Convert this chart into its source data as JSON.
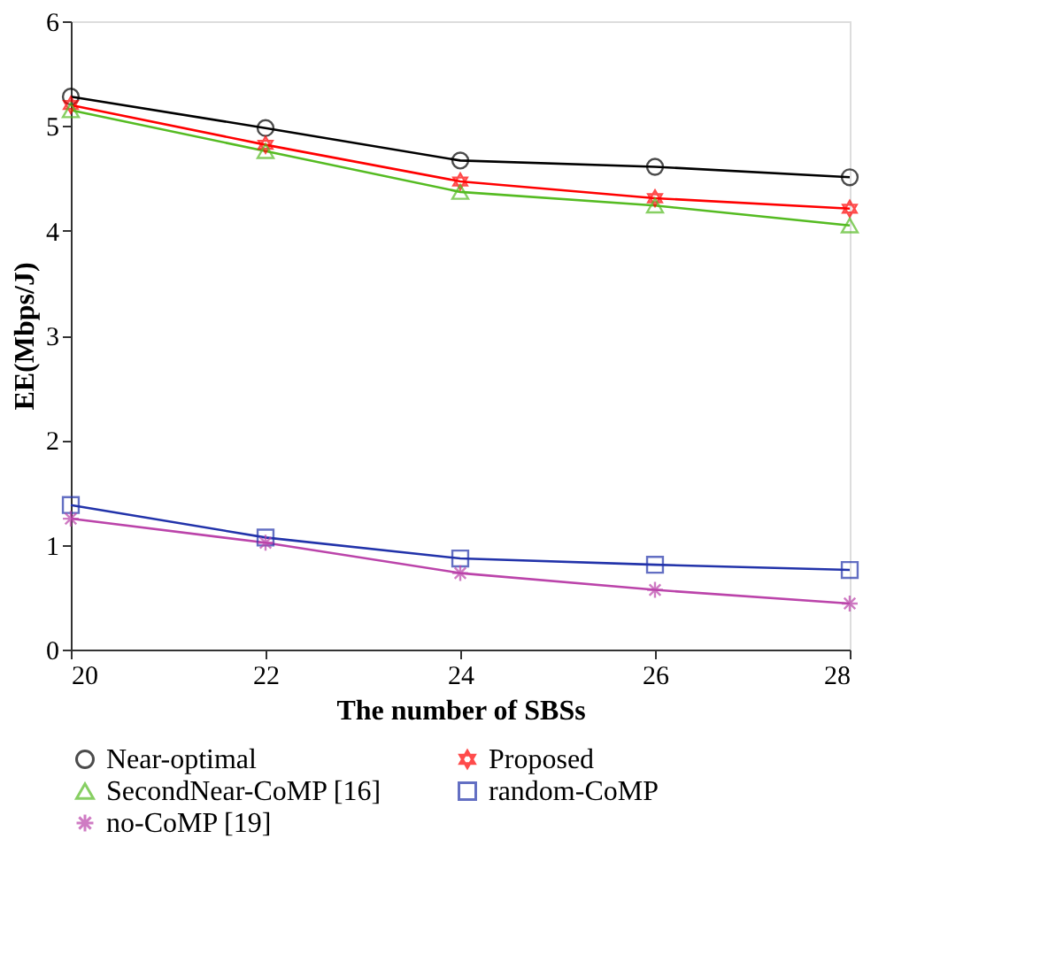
{
  "chart_data": {
    "type": "line",
    "xlabel": "The number of SBSs",
    "ylabel": "EE(Mbps/J)",
    "x": [
      20,
      22,
      24,
      26,
      28
    ],
    "xlim": [
      20,
      28
    ],
    "xticks": [
      20,
      22,
      24,
      26,
      28
    ],
    "ylim": [
      0,
      6
    ],
    "yticks": [
      0,
      1,
      2,
      3,
      4,
      5,
      6
    ],
    "grid": false,
    "legend": "bottom",
    "line_style": "solid",
    "series": [
      {
        "name": "Near-optimal",
        "color": "#000000",
        "marker": "circle",
        "values": [
          5.28,
          4.98,
          4.67,
          4.61,
          4.51
        ]
      },
      {
        "name": "Proposed",
        "color": "#ff0000",
        "marker": "star",
        "values": [
          5.2,
          4.82,
          4.47,
          4.31,
          4.21
        ]
      },
      {
        "name": "SecondNear-CoMP [16]",
        "color": "#55bb22",
        "marker": "triangle",
        "values": [
          5.15,
          4.76,
          4.37,
          4.24,
          4.05
        ]
      },
      {
        "name": "random-CoMP",
        "color": "#2233aa",
        "marker": "square",
        "values": [
          1.38,
          1.07,
          0.87,
          0.81,
          0.76
        ]
      },
      {
        "name": "no-CoMP [19]",
        "color": "#bb44aa",
        "marker": "cross",
        "values": [
          1.25,
          1.02,
          0.73,
          0.57,
          0.44
        ]
      }
    ]
  }
}
